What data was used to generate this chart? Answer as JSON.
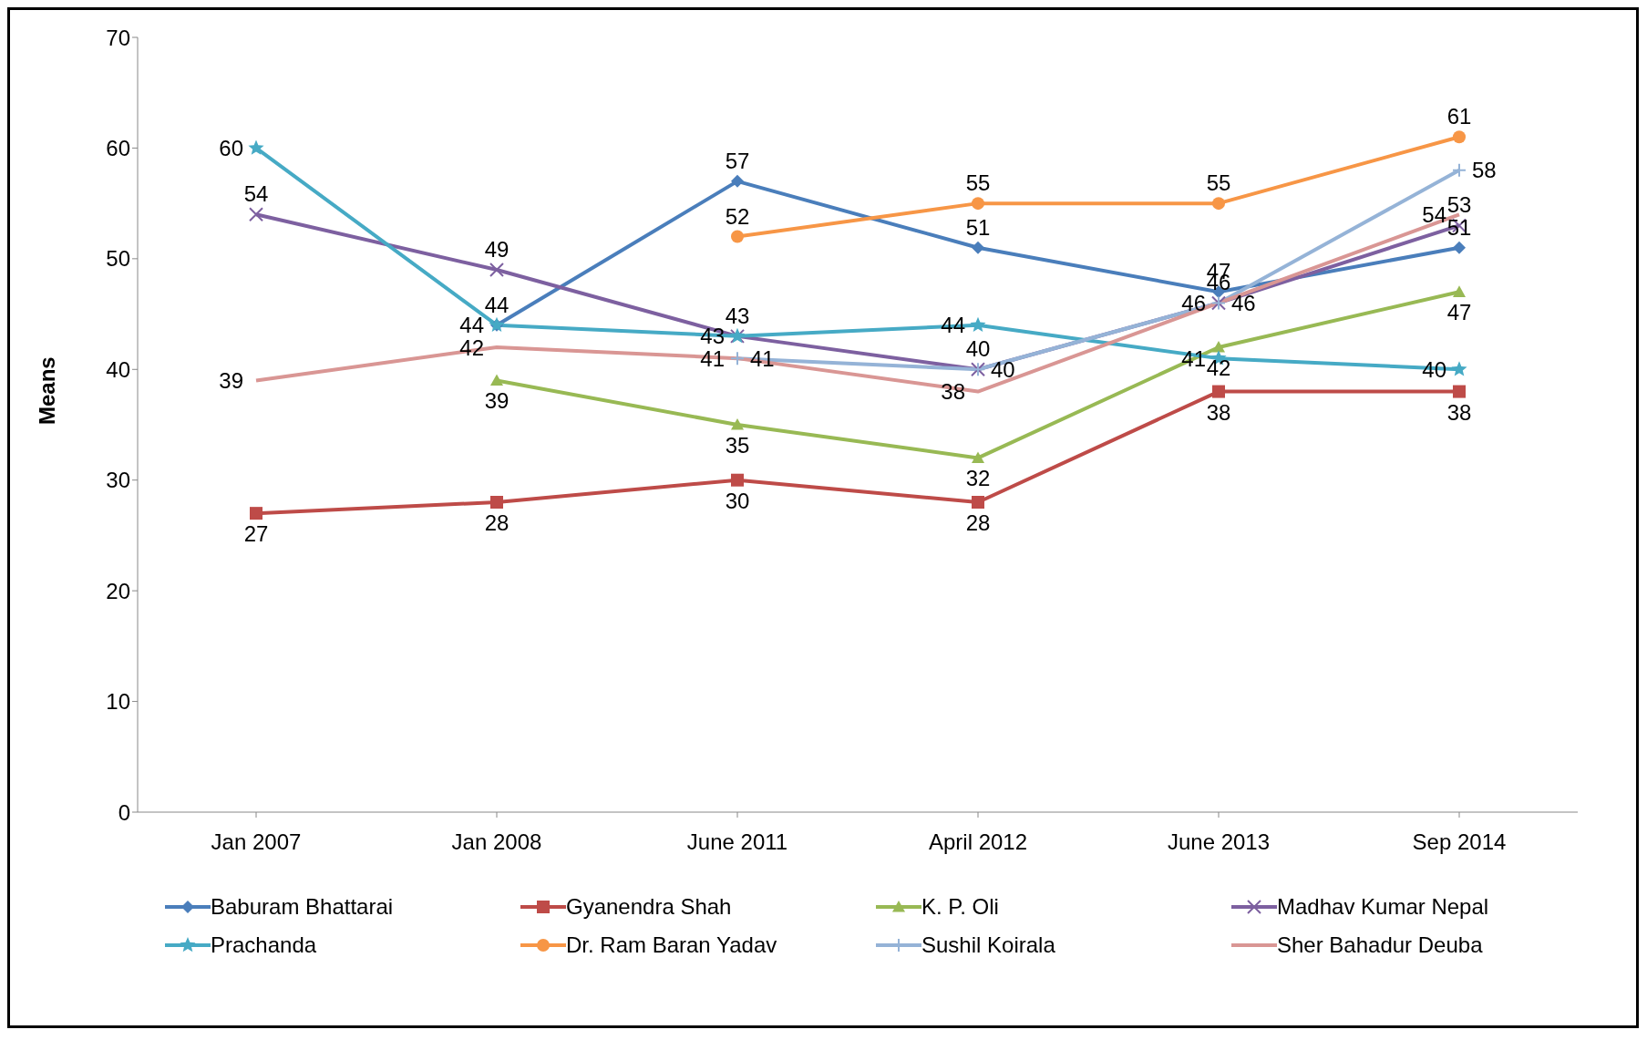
{
  "chart_data": {
    "type": "line",
    "ylabel": "Means",
    "categories": [
      "Jan 2007",
      "Jan 2008",
      "June 2011",
      "April 2012",
      "June 2013",
      "Sep 2014"
    ],
    "series": [
      {
        "name": "Baburam Bhattarai",
        "color": "#4a7ebb",
        "marker": "diamond",
        "values": [
          null,
          44,
          57,
          51,
          47,
          51
        ]
      },
      {
        "name": "Gyanendra Shah",
        "color": "#be4b48",
        "marker": "square",
        "values": [
          27,
          28,
          30,
          28,
          38,
          38
        ]
      },
      {
        "name": "K. P. Oli",
        "color": "#98b954",
        "marker": "triangle",
        "values": [
          null,
          39,
          35,
          32,
          42,
          47
        ]
      },
      {
        "name": "Madhav Kumar Nepal",
        "color": "#7d60a0",
        "marker": "cross",
        "values": [
          54,
          49,
          43,
          40,
          46,
          53
        ]
      },
      {
        "name": "Prachanda",
        "color": "#46aac5",
        "marker": "star",
        "values": [
          60,
          44,
          43,
          44,
          41,
          40
        ]
      },
      {
        "name": "Dr. Ram Baran Yadav",
        "color": "#f79646",
        "marker": "circle",
        "values": [
          null,
          null,
          52,
          55,
          55,
          61
        ]
      },
      {
        "name": "Sushil Koirala",
        "color": "#95b3d7",
        "marker": "plus",
        "values": [
          null,
          null,
          41,
          40,
          46,
          58
        ]
      },
      {
        "name": "Sher Bahadur Deuba",
        "color": "#d99694",
        "marker": "none",
        "values": [
          39,
          42,
          41,
          38,
          46,
          54
        ]
      }
    ],
    "ylim": [
      0,
      70
    ],
    "yticks": [
      0,
      10,
      20,
      30,
      40,
      50,
      60,
      70
    ],
    "grid": false,
    "legend": "bottom",
    "data_labels": true
  }
}
